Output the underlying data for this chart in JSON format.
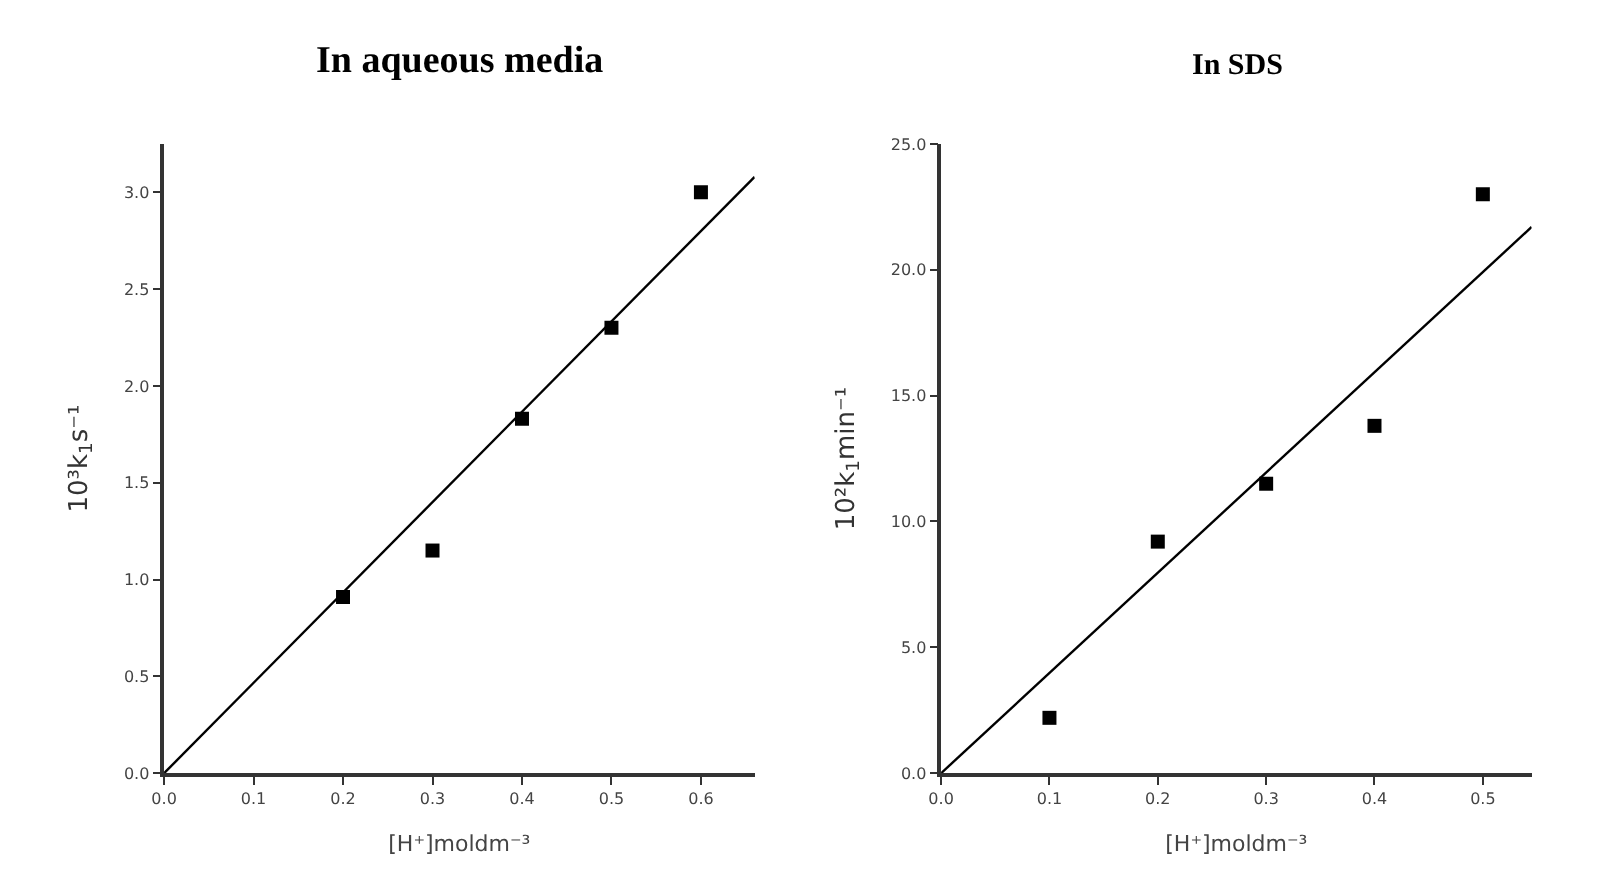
{
  "chart_data": [
    {
      "type": "scatter",
      "title": "In aqueous media",
      "xlabel": "[H⁺]moldm⁻³",
      "ylabel": "10³k$_{1}$s⁻¹",
      "xlim": [
        0,
        0.66
      ],
      "ylim": [
        0,
        3.25
      ],
      "xticks": [
        {
          "value": 0,
          "label": "0.0"
        },
        0.1,
        0.2,
        0.3,
        0.4,
        0.5,
        0.6
      ],
      "yticks": [
        {
          "value": 0,
          "label": "0.0"
        },
        0.5,
        {
          "value": 1,
          "label": "1.0"
        },
        1.5,
        {
          "value": 2,
          "label": "2.0"
        },
        2.5,
        {
          "value": 3,
          "label": "3.0"
        }
      ],
      "marker": "square",
      "series": [
        {
          "color": "#000000",
          "x": [
            0.2,
            0.3,
            0.4,
            0.5,
            0.6
          ],
          "values": [
            0.91,
            1.15,
            1.83,
            2.3,
            3.0
          ]
        },
        {
          "type": "line",
          "color": "#000000",
          "marker": "none",
          "line_style": "solid",
          "x": [
            0,
            0.66
          ],
          "values": [
            0,
            3.08
          ]
        }
      ]
    },
    {
      "type": "scatter",
      "title": "In SDS",
      "xlabel": "[H⁺]moldm⁻³",
      "ylabel": "10²k$_{1}$min⁻¹",
      "xlim": [
        0,
        0.545
      ],
      "ylim": [
        0,
        25
      ],
      "xticks": [
        {
          "value": 0,
          "label": "0.0"
        },
        0.1,
        0.2,
        0.3,
        0.4,
        0.5
      ],
      "yticks": [
        {
          "value": 0,
          "label": "0.0"
        },
        {
          "value": 5,
          "label": "5.0"
        },
        {
          "value": 10,
          "label": "10.0"
        },
        {
          "value": 15,
          "label": "15.0"
        },
        {
          "value": 20,
          "label": "20.0"
        },
        {
          "value": 25,
          "label": "25.0"
        }
      ],
      "marker": "square",
      "series": [
        {
          "color": "#000000",
          "x": [
            0.1,
            0.2,
            0.3,
            0.4,
            0.5
          ],
          "values": [
            2.2,
            9.2,
            11.5,
            13.8,
            23.0
          ]
        },
        {
          "type": "line",
          "color": "#000000",
          "marker": "none",
          "line_style": "solid",
          "x": [
            0,
            0.545
          ],
          "values": [
            0,
            21.7
          ]
        }
      ]
    }
  ]
}
